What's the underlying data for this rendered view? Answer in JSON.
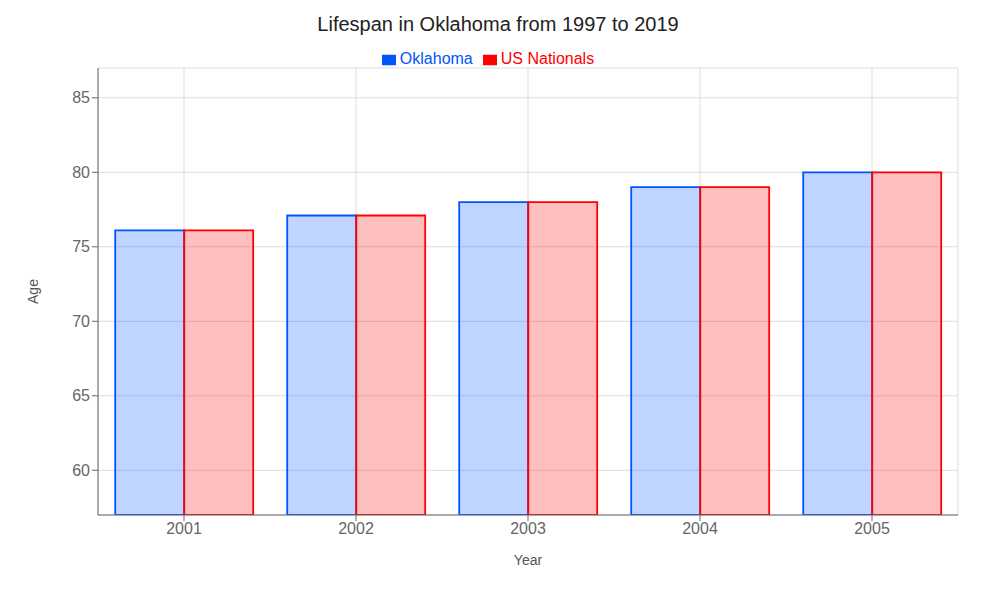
{
  "chart_data": {
    "type": "bar",
    "title": "Lifespan in Oklahoma from 1997 to 2019",
    "x_label": "Year",
    "y_label": "Age",
    "categories": [
      "2001",
      "2002",
      "2003",
      "2004",
      "2005"
    ],
    "series": [
      {
        "name": "Oklahoma",
        "color": "#0055ff",
        "values": [
          76.1,
          77.1,
          78.0,
          79.0,
          80.0
        ]
      },
      {
        "name": "US Nationals",
        "color": "#ff0000",
        "values": [
          76.1,
          77.1,
          78.0,
          79.0,
          80.0
        ]
      }
    ],
    "ylim": [
      57,
      87
    ],
    "yticks": [
      60,
      65,
      70,
      75,
      80,
      85
    ],
    "grid": true,
    "legend": "top"
  }
}
